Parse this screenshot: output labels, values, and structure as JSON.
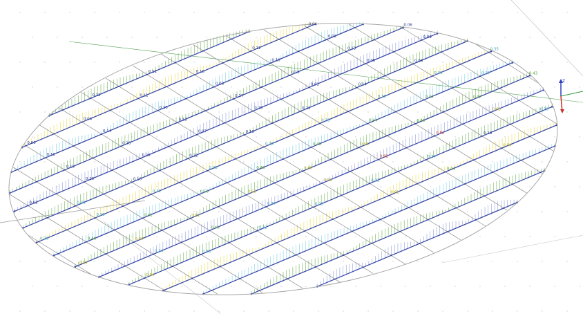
{
  "scene": {
    "colors": {
      "background": "#ffffff",
      "grid_dots": "#c9c9c9",
      "outline": "#a6a6a6",
      "mesh": "#8c8c8c",
      "beam": "#3a4aa8",
      "beam_light": "#7f8fd6",
      "diagram_green": "#5aa63c",
      "diagram_yellow": "#e2d630",
      "diagram_cyan": "#6cc7e0",
      "diagram_red": "#d13a2c",
      "axis_z": "#2d3fbf",
      "axis_x": "#2d9c3c",
      "axis_y": "#c8302a"
    },
    "axis_triad": {
      "z_label": "Z"
    },
    "result_labels": [
      {
        "text": "0.12",
        "color": "#2b3a8f"
      },
      {
        "text": "0.12",
        "color": "#2b3a8f"
      },
      {
        "text": "0.04",
        "color": "#2b3a8f"
      },
      {
        "text": "0.11",
        "color": "#2b3a8f"
      },
      {
        "text": "0.10",
        "color": "#2b3a8f"
      },
      {
        "text": "0.11",
        "color": "#2b3a8f"
      },
      {
        "text": "0.04",
        "color": "#2b3a8f"
      },
      {
        "text": "0.06",
        "color": "#2b3a8f"
      },
      {
        "text": "0.02",
        "color": "#2b3a8f"
      },
      {
        "text": "0.10",
        "color": "#2b3a8f"
      },
      {
        "text": "0.03",
        "color": "#2b3a8f"
      },
      {
        "text": "0.16",
        "color": "#2b3a8f"
      },
      {
        "text": "0.14",
        "color": "#2b3a8f"
      },
      {
        "text": "0.11",
        "color": "#2b3a8f"
      },
      {
        "text": "0.06",
        "color": "#2b3a8f"
      },
      {
        "text": "0.13",
        "color": "#2b3a8f"
      },
      {
        "text": "0.15",
        "color": "#2b3a8f"
      },
      {
        "text": "0.17",
        "color": "#2b3a8f"
      },
      {
        "text": "0.13",
        "color": "#2b3a8f"
      },
      {
        "text": "0.16",
        "color": "#2b3a8f"
      },
      {
        "text": "0.19",
        "color": "#2b3a8f"
      },
      {
        "text": "0.09",
        "color": "#2b3a8f"
      },
      {
        "text": "0.05",
        "color": "#2b3a8f"
      },
      {
        "text": "0.01",
        "color": "#2b3a8f"
      },
      {
        "text": "0.20",
        "color": "#2b3a8f"
      },
      {
        "text": "0.07",
        "color": "#2b3a8f"
      },
      {
        "text": "0.20",
        "color": "#2b3a8f"
      },
      {
        "text": "0.10",
        "color": "#2b3a8f"
      },
      {
        "text": "0.02",
        "color": "#2b3a8f"
      },
      {
        "text": "0.08",
        "color": "#2b3a8f"
      },
      {
        "text": "0.14",
        "color": "#2b3a8f"
      },
      {
        "text": "0.21",
        "color": "#2b3a8f"
      },
      {
        "text": "0.16",
        "color": "#2b3a8f"
      },
      {
        "text": "0.22",
        "color": "#2b3a8f"
      },
      {
        "text": "0.16",
        "color": "#2b3a8f"
      },
      {
        "text": "0.36",
        "color": "#3f9ec0"
      },
      {
        "text": "0.35",
        "color": "#3f9ec0"
      },
      {
        "text": "0.31",
        "color": "#3f9ec0"
      },
      {
        "text": "0.30",
        "color": "#3f9ec0"
      },
      {
        "text": "0.33",
        "color": "#3f9ec0"
      },
      {
        "text": "0.39",
        "color": "#3f9ec0"
      },
      {
        "text": "0.28",
        "color": "#3f9ec0"
      },
      {
        "text": "0.31",
        "color": "#3f9ec0"
      },
      {
        "text": "0.29",
        "color": "#3f9ec0"
      },
      {
        "text": "0.36",
        "color": "#3f9ec0"
      },
      {
        "text": "0.27",
        "color": "#3f9ec0"
      },
      {
        "text": "0.42",
        "color": "#4f9a35"
      },
      {
        "text": "0.44",
        "color": "#4f9a35"
      },
      {
        "text": "0.45",
        "color": "#4f9a35"
      },
      {
        "text": "0.48",
        "color": "#4f9a35"
      },
      {
        "text": "0.50",
        "color": "#4f9a35"
      },
      {
        "text": "0.41",
        "color": "#4f9a35"
      },
      {
        "text": "0.46",
        "color": "#4f9a35"
      },
      {
        "text": "0.43",
        "color": "#4f9a35"
      },
      {
        "text": "0.47",
        "color": "#4f9a35"
      },
      {
        "text": "0.49",
        "color": "#4f9a35"
      },
      {
        "text": "0.58",
        "color": "#b4a81a"
      },
      {
        "text": "0.60",
        "color": "#b4a81a"
      },
      {
        "text": "0.55",
        "color": "#b4a81a"
      },
      {
        "text": "0.62",
        "color": "#b4a81a"
      },
      {
        "text": "0.57",
        "color": "#b4a81a"
      },
      {
        "text": "0.59",
        "color": "#b4a81a"
      },
      {
        "text": "0.63",
        "color": "#b4a81a"
      },
      {
        "text": "0.82",
        "color": "#c33022"
      },
      {
        "text": "0.92",
        "color": "#c33022"
      },
      {
        "text": "0.53",
        "color": "#b4a81a"
      },
      {
        "text": "0.37",
        "color": "#3f9ec0"
      },
      {
        "text": "0.40",
        "color": "#4f9a35"
      },
      {
        "text": "0.34",
        "color": "#3f9ec0"
      },
      {
        "text": "0.26",
        "color": "#3f9ec0"
      },
      {
        "text": "0.18",
        "color": "#2b3a8f"
      },
      {
        "text": "0.24",
        "color": "#3f9ec0"
      },
      {
        "text": "0.23",
        "color": "#3f9ec0"
      },
      {
        "text": "0.25",
        "color": "#3f9ec0"
      },
      {
        "text": "0.32",
        "color": "#3f9ec0"
      },
      {
        "text": "0.38",
        "color": "#3f9ec0"
      },
      {
        "text": "0.54",
        "color": "#b4a81a"
      },
      {
        "text": "0.56",
        "color": "#b4a81a"
      },
      {
        "text": "0.44",
        "color": "#4f9a35"
      },
      {
        "text": "0.61",
        "color": "#b4a81a"
      }
    ]
  }
}
